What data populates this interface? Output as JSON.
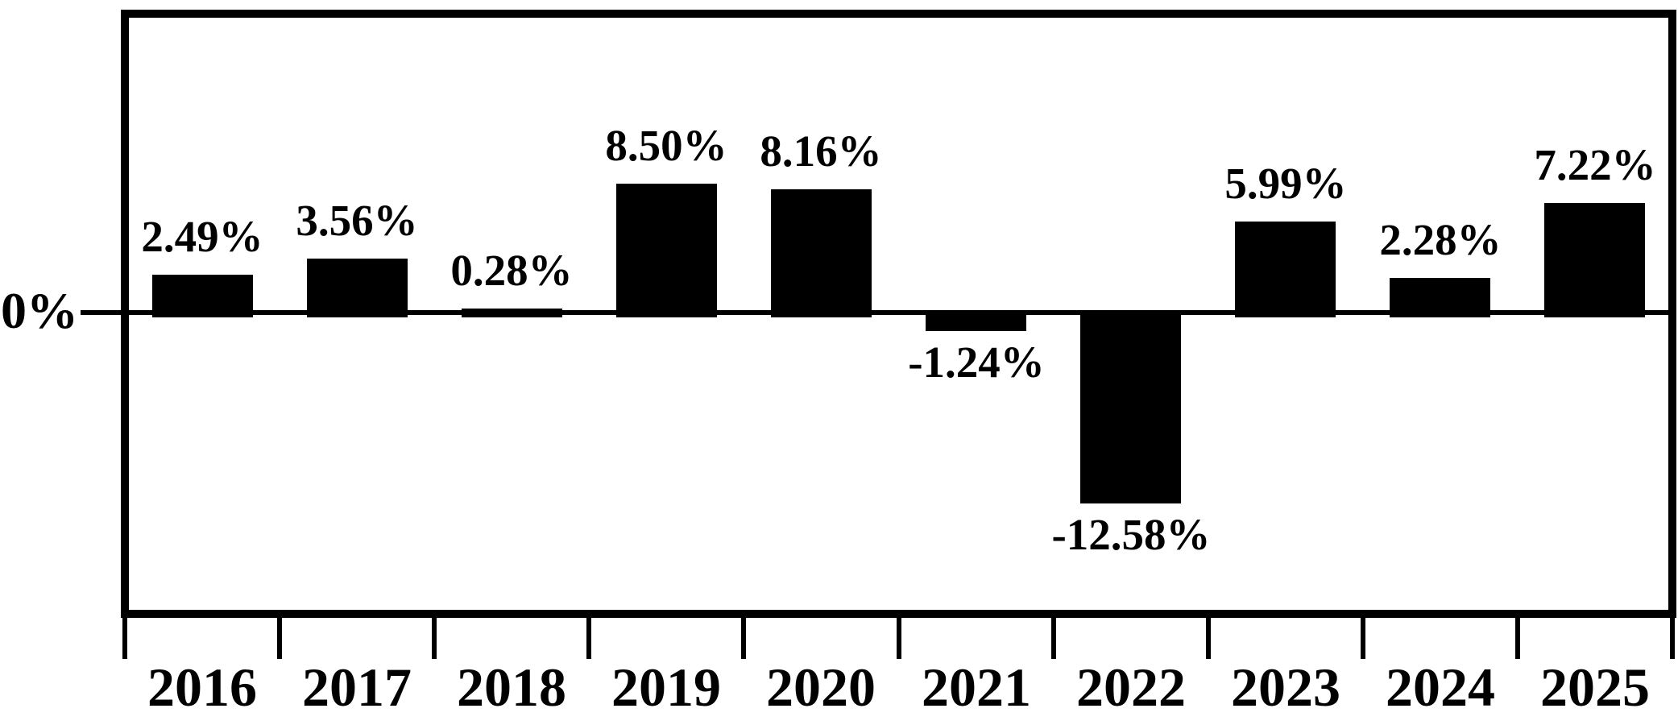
{
  "page": {
    "background": "#ffffff",
    "foreground": "#000000"
  },
  "chart_data": {
    "type": "bar",
    "categories": [
      "2016",
      "2017",
      "2018",
      "2019",
      "2020",
      "2021",
      "2022",
      "2023",
      "2024",
      "2025"
    ],
    "values": [
      2.49,
      3.56,
      0.28,
      8.5,
      8.16,
      -1.24,
      -12.58,
      5.99,
      2.28,
      7.22
    ],
    "labels": [
      "2.49%",
      "3.56%",
      "0.28%",
      "8.50%",
      "8.16%",
      "-1.24%",
      "-12.58%",
      "5.99%",
      "2.28%",
      "7.22%"
    ],
    "title": "",
    "xlabel": "",
    "ylabel": "",
    "ylim": [
      -20,
      20
    ],
    "zero_label": "0%",
    "bar_color": "#000000",
    "background_color": "#ffffff",
    "grid": false,
    "legend": false,
    "value_labels_shown": true,
    "baseline_value": 0
  }
}
